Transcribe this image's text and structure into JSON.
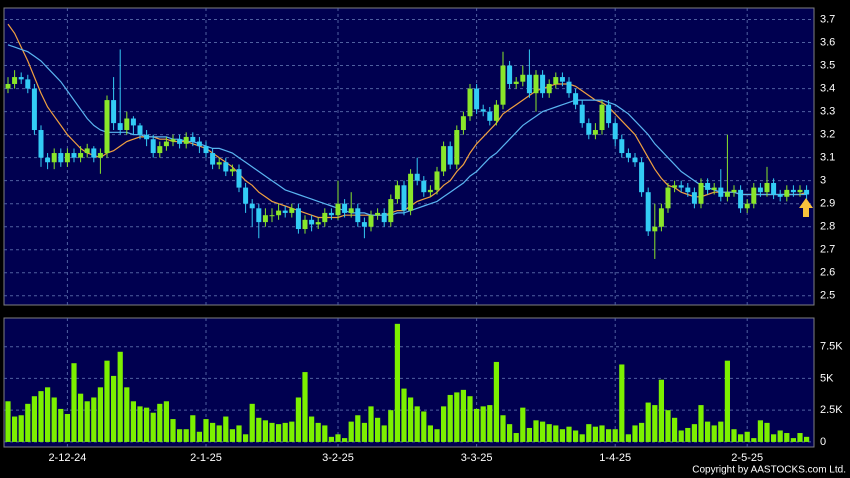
{
  "chart_data": {
    "type": "candlestick",
    "open": [
      3.4,
      3.42,
      3.45,
      3.44,
      3.4,
      3.22,
      3.1,
      3.08,
      3.12,
      3.08,
      3.12,
      3.1,
      3.12,
      3.14,
      3.1,
      3.12,
      3.35,
      3.25,
      3.22,
      3.27,
      3.24,
      3.2,
      3.18,
      3.12,
      3.15,
      3.17,
      3.18,
      3.16,
      3.19,
      3.17,
      3.15,
      3.12,
      3.07,
      3.08,
      3.04,
      3.05,
      2.97,
      2.9,
      2.88,
      2.82,
      2.85,
      2.85,
      2.87,
      2.86,
      2.88,
      2.79,
      2.83,
      2.81,
      2.82,
      2.86,
      2.85,
      2.9,
      2.86,
      2.88,
      2.82,
      2.8,
      2.85,
      2.86,
      2.82,
      2.92,
      2.98,
      2.87,
      3.03,
      3.0,
      2.95,
      2.96,
      3.04,
      3.15,
      3.07,
      3.22,
      3.28,
      3.4,
      3.31,
      3.3,
      3.26,
      3.33,
      3.5,
      3.42,
      3.43,
      3.46,
      3.38,
      3.46,
      3.38,
      3.42,
      3.45,
      3.43,
      3.38,
      3.33,
      3.25,
      3.2,
      3.22,
      3.33,
      3.25,
      3.18,
      3.12,
      3.1,
      3.08,
      2.95,
      2.78,
      2.8,
      2.88,
      2.97,
      2.98,
      2.97,
      2.95,
      2.9,
      2.99,
      2.96,
      2.97,
      2.93,
      2.95,
      2.96,
      2.88,
      2.9,
      2.97,
      2.95,
      2.99,
      2.94,
      2.93,
      2.96,
      2.95,
      2.96
    ],
    "high": [
      3.45,
      3.48,
      3.47,
      3.46,
      3.42,
      3.24,
      3.12,
      3.14,
      3.14,
      3.14,
      3.14,
      3.15,
      3.16,
      3.15,
      3.14,
      3.37,
      3.45,
      3.57,
      3.3,
      3.28,
      3.25,
      3.22,
      3.2,
      3.17,
      3.19,
      3.2,
      3.2,
      3.21,
      3.21,
      3.19,
      3.17,
      3.14,
      3.1,
      3.1,
      3.07,
      3.07,
      2.99,
      2.92,
      2.9,
      2.88,
      2.88,
      2.9,
      2.89,
      2.9,
      2.9,
      2.85,
      2.85,
      2.84,
      2.88,
      2.88,
      3.0,
      2.92,
      2.95,
      2.9,
      2.84,
      2.87,
      2.88,
      2.88,
      2.94,
      3.0,
      3.0,
      3.05,
      3.1,
      3.02,
      2.98,
      3.06,
      3.17,
      3.17,
      3.24,
      3.3,
      3.42,
      3.42,
      3.33,
      3.32,
      3.35,
      3.56,
      3.52,
      3.45,
      3.5,
      3.57,
      3.48,
      3.48,
      3.44,
      3.47,
      3.47,
      3.45,
      3.4,
      3.35,
      3.27,
      3.25,
      3.35,
      3.35,
      3.27,
      3.2,
      3.14,
      3.12,
      3.1,
      2.97,
      2.9,
      2.9,
      2.99,
      3.0,
      3.0,
      2.99,
      2.97,
      3.01,
      3.01,
      2.99,
      3.05,
      3.2,
      2.98,
      2.98,
      2.92,
      2.99,
      2.99,
      3.06,
      3.01,
      2.96,
      2.98,
      2.98,
      2.98,
      2.98
    ],
    "low": [
      3.38,
      3.4,
      3.42,
      3.38,
      3.2,
      3.06,
      3.05,
      3.05,
      3.06,
      3.06,
      3.08,
      3.08,
      3.1,
      3.08,
      3.03,
      3.1,
      3.22,
      3.2,
      3.2,
      3.2,
      3.18,
      3.15,
      3.1,
      3.1,
      3.13,
      3.15,
      3.14,
      3.14,
      3.15,
      3.12,
      3.1,
      3.05,
      3.05,
      3.02,
      3.02,
      2.95,
      2.86,
      2.8,
      2.75,
      2.8,
      2.82,
      2.83,
      2.84,
      2.84,
      2.77,
      2.77,
      2.78,
      2.79,
      2.8,
      2.83,
      2.83,
      2.84,
      2.84,
      2.8,
      2.75,
      2.78,
      2.83,
      2.8,
      2.8,
      2.9,
      2.85,
      2.85,
      2.98,
      2.93,
      2.93,
      2.94,
      3.02,
      3.05,
      3.05,
      3.2,
      3.26,
      3.29,
      3.28,
      3.24,
      3.24,
      3.31,
      3.4,
      3.4,
      3.41,
      3.36,
      3.3,
      3.36,
      3.36,
      3.4,
      3.41,
      3.36,
      3.31,
      3.23,
      3.18,
      3.18,
      3.2,
      3.23,
      3.15,
      3.1,
      3.08,
      3.06,
      2.93,
      2.76,
      2.66,
      2.78,
      2.86,
      2.95,
      2.95,
      2.93,
      2.88,
      2.88,
      2.94,
      2.94,
      2.91,
      2.91,
      2.93,
      2.86,
      2.86,
      2.88,
      2.93,
      2.93,
      2.92,
      2.91,
      2.91,
      2.93,
      2.93,
      2.92
    ],
    "close": [
      3.42,
      3.45,
      3.44,
      3.4,
      3.22,
      3.1,
      3.08,
      3.12,
      3.08,
      3.12,
      3.1,
      3.12,
      3.14,
      3.1,
      3.12,
      3.35,
      3.25,
      3.22,
      3.27,
      3.24,
      3.2,
      3.18,
      3.12,
      3.15,
      3.17,
      3.18,
      3.16,
      3.19,
      3.17,
      3.15,
      3.12,
      3.07,
      3.08,
      3.04,
      3.05,
      2.97,
      2.9,
      2.88,
      2.82,
      2.85,
      2.85,
      2.87,
      2.86,
      2.88,
      2.79,
      2.83,
      2.81,
      2.82,
      2.86,
      2.85,
      2.9,
      2.86,
      2.88,
      2.82,
      2.8,
      2.85,
      2.86,
      2.82,
      2.92,
      2.98,
      2.87,
      3.03,
      3.0,
      2.95,
      2.96,
      3.04,
      3.15,
      3.07,
      3.22,
      3.28,
      3.4,
      3.31,
      3.3,
      3.26,
      3.33,
      3.5,
      3.42,
      3.43,
      3.46,
      3.38,
      3.46,
      3.38,
      3.42,
      3.45,
      3.43,
      3.38,
      3.33,
      3.25,
      3.2,
      3.22,
      3.33,
      3.25,
      3.18,
      3.12,
      3.1,
      3.08,
      2.95,
      2.78,
      2.8,
      2.88,
      2.97,
      2.98,
      2.97,
      2.95,
      2.9,
      2.99,
      2.96,
      2.97,
      2.93,
      2.95,
      2.96,
      2.88,
      2.9,
      2.97,
      2.95,
      2.99,
      2.94,
      2.93,
      2.96,
      2.95,
      2.96,
      2.94
    ],
    "up_color": "#8ae62a",
    "down_color": "#33ccf5",
    "series": [
      {
        "color": "#f0a040",
        "values": [
          3.68,
          3.64,
          3.58,
          3.52,
          3.45,
          3.38,
          3.32,
          3.28,
          3.24,
          3.2,
          3.17,
          3.14,
          3.12,
          3.11,
          3.1,
          3.12,
          3.13,
          3.15,
          3.17,
          3.18,
          3.19,
          3.19,
          3.19,
          3.18,
          3.18,
          3.17,
          3.17,
          3.17,
          3.16,
          3.15,
          3.14,
          3.12,
          3.1,
          3.08,
          3.06,
          3.03,
          3.0,
          2.98,
          2.95,
          2.93,
          2.91,
          2.9,
          2.89,
          2.88,
          2.87,
          2.86,
          2.85,
          2.84,
          2.84,
          2.84,
          2.84,
          2.85,
          2.85,
          2.85,
          2.85,
          2.85,
          2.85,
          2.85,
          2.86,
          2.87,
          2.87,
          2.89,
          2.91,
          2.92,
          2.93,
          2.95,
          2.98,
          3.0,
          3.04,
          3.07,
          3.12,
          3.16,
          3.19,
          3.22,
          3.25,
          3.29,
          3.31,
          3.33,
          3.35,
          3.37,
          3.39,
          3.4,
          3.41,
          3.42,
          3.42,
          3.42,
          3.41,
          3.39,
          3.37,
          3.35,
          3.34,
          3.32,
          3.29,
          3.26,
          3.23,
          3.2,
          3.15,
          3.1,
          3.05,
          3.01,
          2.98,
          2.97,
          2.95,
          2.94,
          2.93,
          2.93,
          2.94,
          2.95,
          2.95,
          2.95,
          2.95,
          2.94,
          2.94,
          2.94,
          2.94,
          2.94,
          2.94,
          2.94,
          2.94,
          2.94,
          2.94,
          2.95
        ]
      },
      {
        "color": "#5ab4f0",
        "values": [
          3.59,
          3.58,
          3.57,
          3.56,
          3.54,
          3.52,
          3.49,
          3.46,
          3.43,
          3.39,
          3.35,
          3.31,
          3.27,
          3.24,
          3.22,
          3.21,
          3.21,
          3.21,
          3.21,
          3.2,
          3.2,
          3.19,
          3.19,
          3.19,
          3.19,
          3.18,
          3.18,
          3.17,
          3.17,
          3.16,
          3.15,
          3.14,
          3.14,
          3.13,
          3.12,
          3.1,
          3.08,
          3.06,
          3.04,
          3.02,
          3.0,
          2.98,
          2.96,
          2.95,
          2.94,
          2.93,
          2.92,
          2.91,
          2.9,
          2.89,
          2.88,
          2.87,
          2.86,
          2.86,
          2.86,
          2.85,
          2.85,
          2.85,
          2.85,
          2.86,
          2.86,
          2.87,
          2.88,
          2.89,
          2.9,
          2.91,
          2.93,
          2.95,
          2.97,
          2.99,
          3.02,
          3.04,
          3.07,
          3.1,
          3.12,
          3.15,
          3.18,
          3.21,
          3.24,
          3.26,
          3.28,
          3.3,
          3.31,
          3.32,
          3.33,
          3.34,
          3.35,
          3.35,
          3.35,
          3.35,
          3.35,
          3.34,
          3.33,
          3.31,
          3.29,
          3.26,
          3.23,
          3.2,
          3.16,
          3.13,
          3.1,
          3.07,
          3.04,
          3.02,
          3.0,
          2.98,
          2.97,
          2.96,
          2.95,
          2.95,
          2.95,
          2.94,
          2.94,
          2.94,
          2.94,
          2.94,
          2.94,
          2.94,
          2.94,
          2.94,
          2.94,
          2.94
        ]
      }
    ],
    "ylim": [
      2.46,
      3.75
    ],
    "yticks": [
      2.5,
      2.6,
      2.7,
      2.8,
      2.9,
      3,
      3.1,
      3.2,
      3.3,
      3.4,
      3.5,
      3.6,
      3.7
    ],
    "grid": true,
    "xticks": [
      {
        "value": 9,
        "label": "2-12-24"
      },
      {
        "value": 30,
        "label": "2-1-25"
      },
      {
        "value": 50,
        "label": "3-2-25"
      },
      {
        "value": 71,
        "label": "3-3-25"
      },
      {
        "value": 92,
        "label": "1-4-25"
      },
      {
        "value": 112,
        "label": "2-5-25"
      }
    ],
    "volume": {
      "type": "bar",
      "color": "#7cf000",
      "values": [
        3200,
        2000,
        2100,
        3000,
        3600,
        4000,
        4300,
        3500,
        2600,
        2200,
        6200,
        3800,
        3200,
        3500,
        4300,
        6400,
        5200,
        7100,
        4300,
        3200,
        2800,
        2700,
        2300,
        3000,
        3200,
        1800,
        1000,
        1000,
        2100,
        800,
        1800,
        1500,
        1300,
        2000,
        1000,
        1300,
        600,
        3000,
        1900,
        1700,
        1500,
        1400,
        1500,
        1600,
        3500,
        5500,
        2000,
        1500,
        1300,
        400,
        600,
        300,
        1600,
        2100,
        1500,
        2800,
        1900,
        1300,
        2500,
        9300,
        4200,
        3500,
        2800,
        2400,
        1300,
        1000,
        2800,
        3700,
        3900,
        4100,
        3600,
        2600,
        2800,
        2900,
        6300,
        2100,
        1400,
        700,
        2700,
        1100,
        1700,
        1600,
        1400,
        1300,
        1000,
        1200,
        900,
        600,
        1400,
        1200,
        1300,
        1000,
        1000,
        6100,
        600,
        1300,
        1500,
        3100,
        2900,
        4900,
        2500,
        1900,
        900,
        1100,
        1400,
        2900,
        1600,
        1300,
        1600,
        6400,
        1000,
        600,
        800,
        300,
        1700,
        1500,
        600,
        900,
        700,
        300,
        700,
        400
      ],
      "ylim": [
        -400,
        9760
      ],
      "yticks": [
        0,
        {
          "value": 2500,
          "label": "2.5K"
        },
        {
          "value": 5000,
          "label": "5K"
        },
        {
          "value": 7500,
          "label": "7.5K"
        }
      ]
    },
    "copyright": "Copyright by AASTOCKS.com Ltd."
  }
}
